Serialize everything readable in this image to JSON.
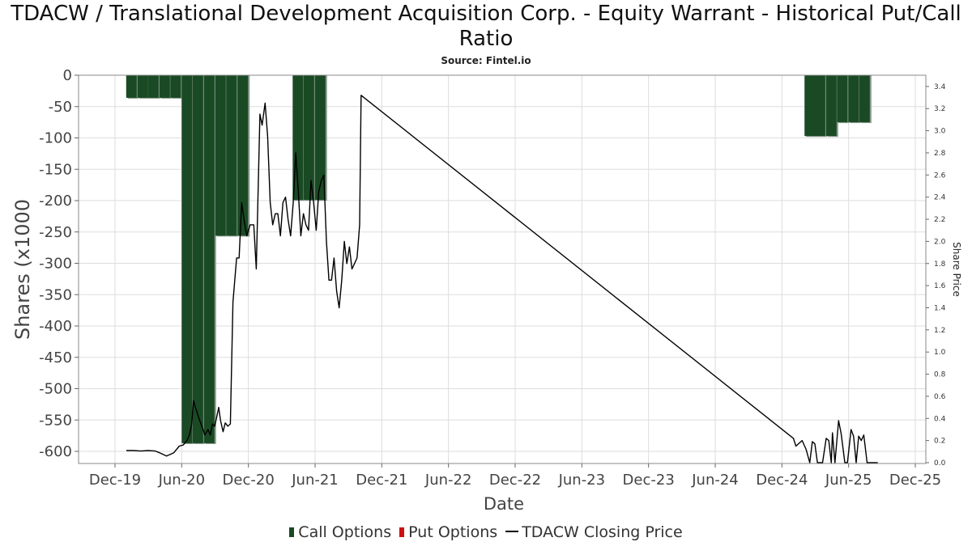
{
  "title": "TDACW / Translational Development Acquisition Corp. - Equity Warrant - Historical Put/Call Ratio",
  "subtitle": "Source: Fintel.io",
  "chart_data": {
    "type": "bar",
    "title": "TDACW / Translational Development Acquisition Corp. - Equity Warrant - Historical Put/Call Ratio",
    "subtitle": "Source: Fintel.io",
    "xlabel": "Date",
    "ylabel": "Shares (x1000",
    "y2label": "Share Price",
    "ylim": [
      -615,
      0
    ],
    "y2lim": [
      0,
      3.5
    ],
    "yticks": [
      0,
      -50,
      -100,
      -150,
      -200,
      -250,
      -300,
      -350,
      -400,
      -450,
      -500,
      -550,
      -600
    ],
    "y2ticks": [
      0.0,
      0.2,
      0.4,
      0.6,
      0.8,
      1.0,
      1.2,
      1.4,
      1.6,
      1.8,
      2.0,
      2.2,
      2.4,
      2.6,
      2.8,
      3.0,
      3.2,
      3.4
    ],
    "xticks": [
      "Dec-19",
      "Jun-20",
      "Dec-20",
      "Jun-21",
      "Dec-21",
      "Jun-22",
      "Dec-22",
      "Jun-23",
      "Dec-23",
      "Jun-24",
      "Dec-24",
      "Jun-25",
      "Dec-25"
    ],
    "grid": true,
    "legend_position": "bottom",
    "colors": {
      "call": "#1a4a24",
      "put": "#cc1111",
      "price": "#000000"
    },
    "series": [
      {
        "name": "Call Options",
        "bars": [
          {
            "date": "2020-01-15",
            "value": -36
          },
          {
            "date": "2020-02-15",
            "value": -36
          },
          {
            "date": "2020-03-15",
            "value": -36
          },
          {
            "date": "2020-04-15",
            "value": -36
          },
          {
            "date": "2020-05-15",
            "value": -36
          },
          {
            "date": "2020-06-15",
            "value": -587
          },
          {
            "date": "2020-07-15",
            "value": -587
          },
          {
            "date": "2020-08-15",
            "value": -587
          },
          {
            "date": "2020-09-15",
            "value": -256
          },
          {
            "date": "2020-10-15",
            "value": -256
          },
          {
            "date": "2020-11-15",
            "value": -256
          },
          {
            "date": "2021-04-15",
            "value": -199
          },
          {
            "date": "2021-05-15",
            "value": -199
          },
          {
            "date": "2021-06-15",
            "value": -199
          },
          {
            "date": "2025-02-15",
            "value": -97
          },
          {
            "date": "2025-03-15",
            "value": -97
          },
          {
            "date": "2025-04-15",
            "value": -97
          },
          {
            "date": "2025-05-15",
            "value": -75
          },
          {
            "date": "2025-06-15",
            "value": -75
          },
          {
            "date": "2025-07-15",
            "value": -75
          }
        ]
      },
      {
        "name": "Put Options",
        "bars": []
      },
      {
        "name": "TDACW Closing Price",
        "points": [
          [
            "2020-01-01",
            0.11
          ],
          [
            "2020-01-20",
            0.11
          ],
          [
            "2020-02-10",
            0.105
          ],
          [
            "2020-03-01",
            0.11
          ],
          [
            "2020-03-20",
            0.105
          ],
          [
            "2020-04-01",
            0.09
          ],
          [
            "2020-04-20",
            0.06
          ],
          [
            "2020-05-10",
            0.09
          ],
          [
            "2020-05-25",
            0.15
          ],
          [
            "2020-06-05",
            0.16
          ],
          [
            "2020-06-15",
            0.2
          ],
          [
            "2020-06-22",
            0.25
          ],
          [
            "2020-06-28",
            0.35
          ],
          [
            "2020-07-03",
            0.56
          ],
          [
            "2020-07-10",
            0.48
          ],
          [
            "2020-07-20",
            0.38
          ],
          [
            "2020-07-28",
            0.31
          ],
          [
            "2020-08-03",
            0.25
          ],
          [
            "2020-08-12",
            0.3
          ],
          [
            "2020-08-18",
            0.25
          ],
          [
            "2020-08-24",
            0.35
          ],
          [
            "2020-08-30",
            0.33
          ],
          [
            "2020-09-05",
            0.42
          ],
          [
            "2020-09-10",
            0.5
          ],
          [
            "2020-09-15",
            0.38
          ],
          [
            "2020-09-22",
            0.28
          ],
          [
            "2020-09-28",
            0.36
          ],
          [
            "2020-10-05",
            0.33
          ],
          [
            "2020-10-12",
            0.35
          ],
          [
            "2020-10-19",
            1.45
          ],
          [
            "2020-10-29",
            1.85
          ],
          [
            "2020-11-05",
            1.85
          ],
          [
            "2020-11-12",
            2.35
          ],
          [
            "2020-11-19",
            2.18
          ],
          [
            "2020-11-26",
            2.05
          ],
          [
            "2020-12-05",
            2.15
          ],
          [
            "2020-12-15",
            2.15
          ],
          [
            "2020-12-22",
            1.75
          ],
          [
            "2021-01-01",
            3.15
          ],
          [
            "2021-01-07",
            3.05
          ],
          [
            "2021-01-15",
            3.25
          ],
          [
            "2021-01-22",
            2.95
          ],
          [
            "2021-01-29",
            2.35
          ],
          [
            "2021-02-05",
            2.15
          ],
          [
            "2021-02-12",
            2.25
          ],
          [
            "2021-02-19",
            2.25
          ],
          [
            "2021-02-26",
            2.05
          ],
          [
            "2021-03-05",
            2.35
          ],
          [
            "2021-03-12",
            2.4
          ],
          [
            "2021-03-19",
            2.2
          ],
          [
            "2021-03-26",
            2.05
          ],
          [
            "2021-04-02",
            2.35
          ],
          [
            "2021-04-09",
            2.8
          ],
          [
            "2021-04-16",
            2.45
          ],
          [
            "2021-04-23",
            2.05
          ],
          [
            "2021-04-30",
            2.25
          ],
          [
            "2021-05-07",
            2.15
          ],
          [
            "2021-05-14",
            2.1
          ],
          [
            "2021-05-21",
            2.55
          ],
          [
            "2021-05-28",
            2.35
          ],
          [
            "2021-06-04",
            2.1
          ],
          [
            "2021-06-11",
            2.45
          ],
          [
            "2021-06-18",
            2.55
          ],
          [
            "2021-06-25",
            2.6
          ],
          [
            "2021-07-02",
            2.0
          ],
          [
            "2021-07-09",
            1.65
          ],
          [
            "2021-07-16",
            1.65
          ],
          [
            "2021-07-23",
            1.85
          ],
          [
            "2021-07-30",
            1.55
          ],
          [
            "2021-08-06",
            1.4
          ],
          [
            "2021-08-13",
            1.65
          ],
          [
            "2021-08-20",
            2.0
          ],
          [
            "2021-08-27",
            1.8
          ],
          [
            "2021-09-03",
            1.95
          ],
          [
            "2021-09-10",
            1.75
          ],
          [
            "2021-09-17",
            1.8
          ],
          [
            "2021-09-24",
            1.85
          ],
          [
            "2021-10-01",
            2.15
          ],
          [
            "2021-10-05",
            3.32
          ],
          [
            "2025-01-01",
            0.22
          ],
          [
            "2025-01-08",
            0.15
          ],
          [
            "2025-01-25",
            0.2
          ],
          [
            "2025-02-05",
            0.12
          ],
          [
            "2025-02-15",
            0.0
          ],
          [
            "2025-02-22",
            0.19
          ],
          [
            "2025-03-01",
            0.17
          ],
          [
            "2025-03-08",
            0.0
          ],
          [
            "2025-03-22",
            0.0
          ],
          [
            "2025-04-01",
            0.22
          ],
          [
            "2025-04-08",
            0.2
          ],
          [
            "2025-04-15",
            0.0
          ],
          [
            "2025-04-18",
            0.27
          ],
          [
            "2025-04-25",
            0.0
          ],
          [
            "2025-05-05",
            0.38
          ],
          [
            "2025-05-12",
            0.26
          ],
          [
            "2025-05-22",
            0.0
          ],
          [
            "2025-05-29",
            0.0
          ],
          [
            "2025-06-08",
            0.3
          ],
          [
            "2025-06-15",
            0.24
          ],
          [
            "2025-06-22",
            0.0
          ],
          [
            "2025-06-29",
            0.24
          ],
          [
            "2025-07-06",
            0.2
          ],
          [
            "2025-07-13",
            0.25
          ],
          [
            "2025-07-22",
            0.0
          ],
          [
            "2025-08-20",
            0.0
          ]
        ]
      }
    ]
  }
}
